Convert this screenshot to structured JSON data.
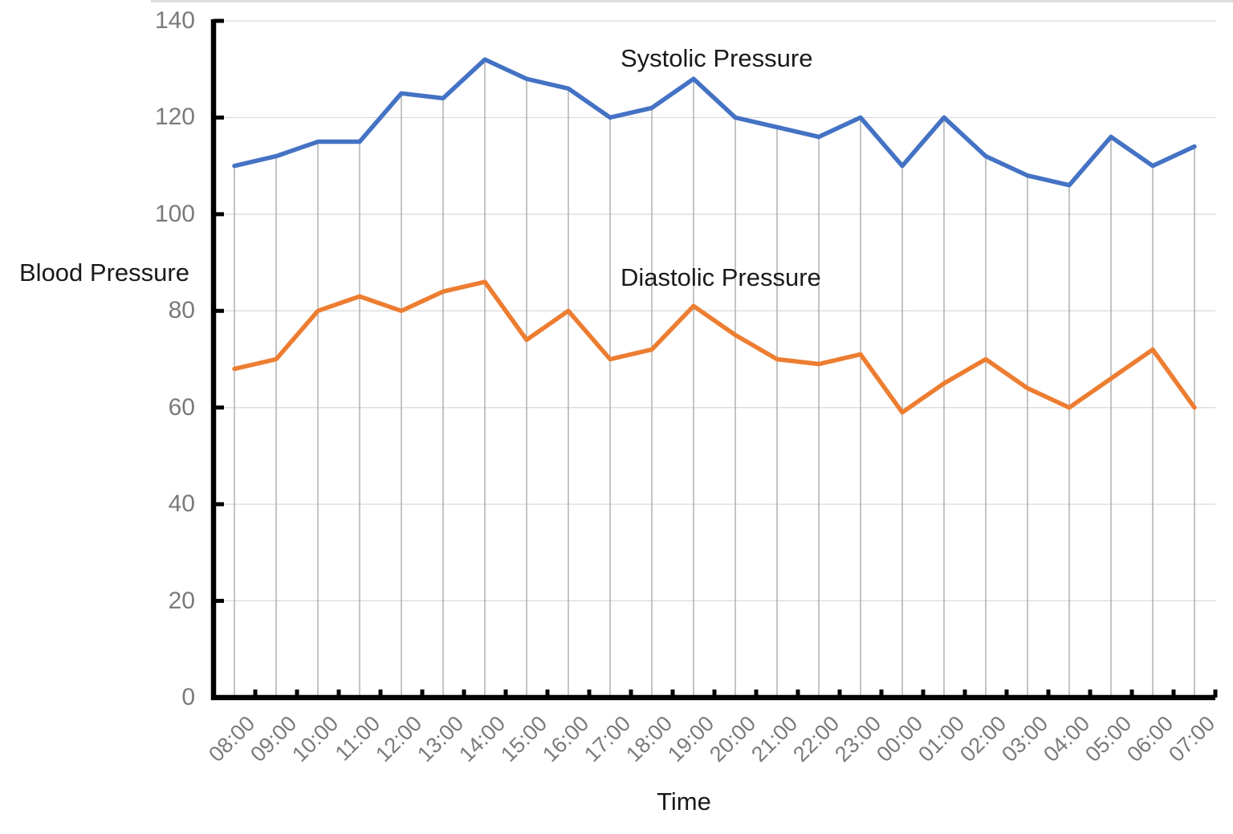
{
  "chart_data": {
    "type": "line",
    "title": "",
    "x_axis_title": "Time",
    "y_axis_title": "Blood Pressure",
    "categories": [
      "08:00",
      "09:00",
      "10:00",
      "11:00",
      "12:00",
      "13:00",
      "14:00",
      "15:00",
      "16:00",
      "17:00",
      "18:00",
      "19:00",
      "20:00",
      "21:00",
      "22:00",
      "23:00",
      "00:00",
      "01:00",
      "02:00",
      "03:00",
      "04:00",
      "05:00",
      "06:00",
      "07:00"
    ],
    "series": [
      {
        "name": "Systolic Pressure",
        "color": "#4472C4",
        "values": [
          110,
          112,
          115,
          115,
          125,
          124,
          132,
          128,
          126,
          120,
          122,
          128,
          120,
          118,
          116,
          120,
          110,
          120,
          112,
          108,
          106,
          116,
          110,
          114
        ]
      },
      {
        "name": "Diastolic Pressure",
        "color": "#ED7D31",
        "values": [
          68,
          70,
          80,
          83,
          80,
          84,
          86,
          74,
          80,
          70,
          72,
          81,
          75,
          70,
          69,
          71,
          59,
          65,
          70,
          64,
          60,
          66,
          72,
          60
        ]
      }
    ],
    "ylim": [
      0,
      140
    ],
    "y_ticks": [
      0,
      20,
      40,
      60,
      80,
      100,
      120,
      140
    ],
    "grid": "horizontal",
    "drop_lines": true,
    "legend_position": "inline-text-labels",
    "axis_color": "#000000",
    "gridline_color": "#d9d9d9",
    "drop_line_color": "#ababab",
    "tick_label_color": "#7a7a7a",
    "text_color": "#1a1a1a"
  }
}
